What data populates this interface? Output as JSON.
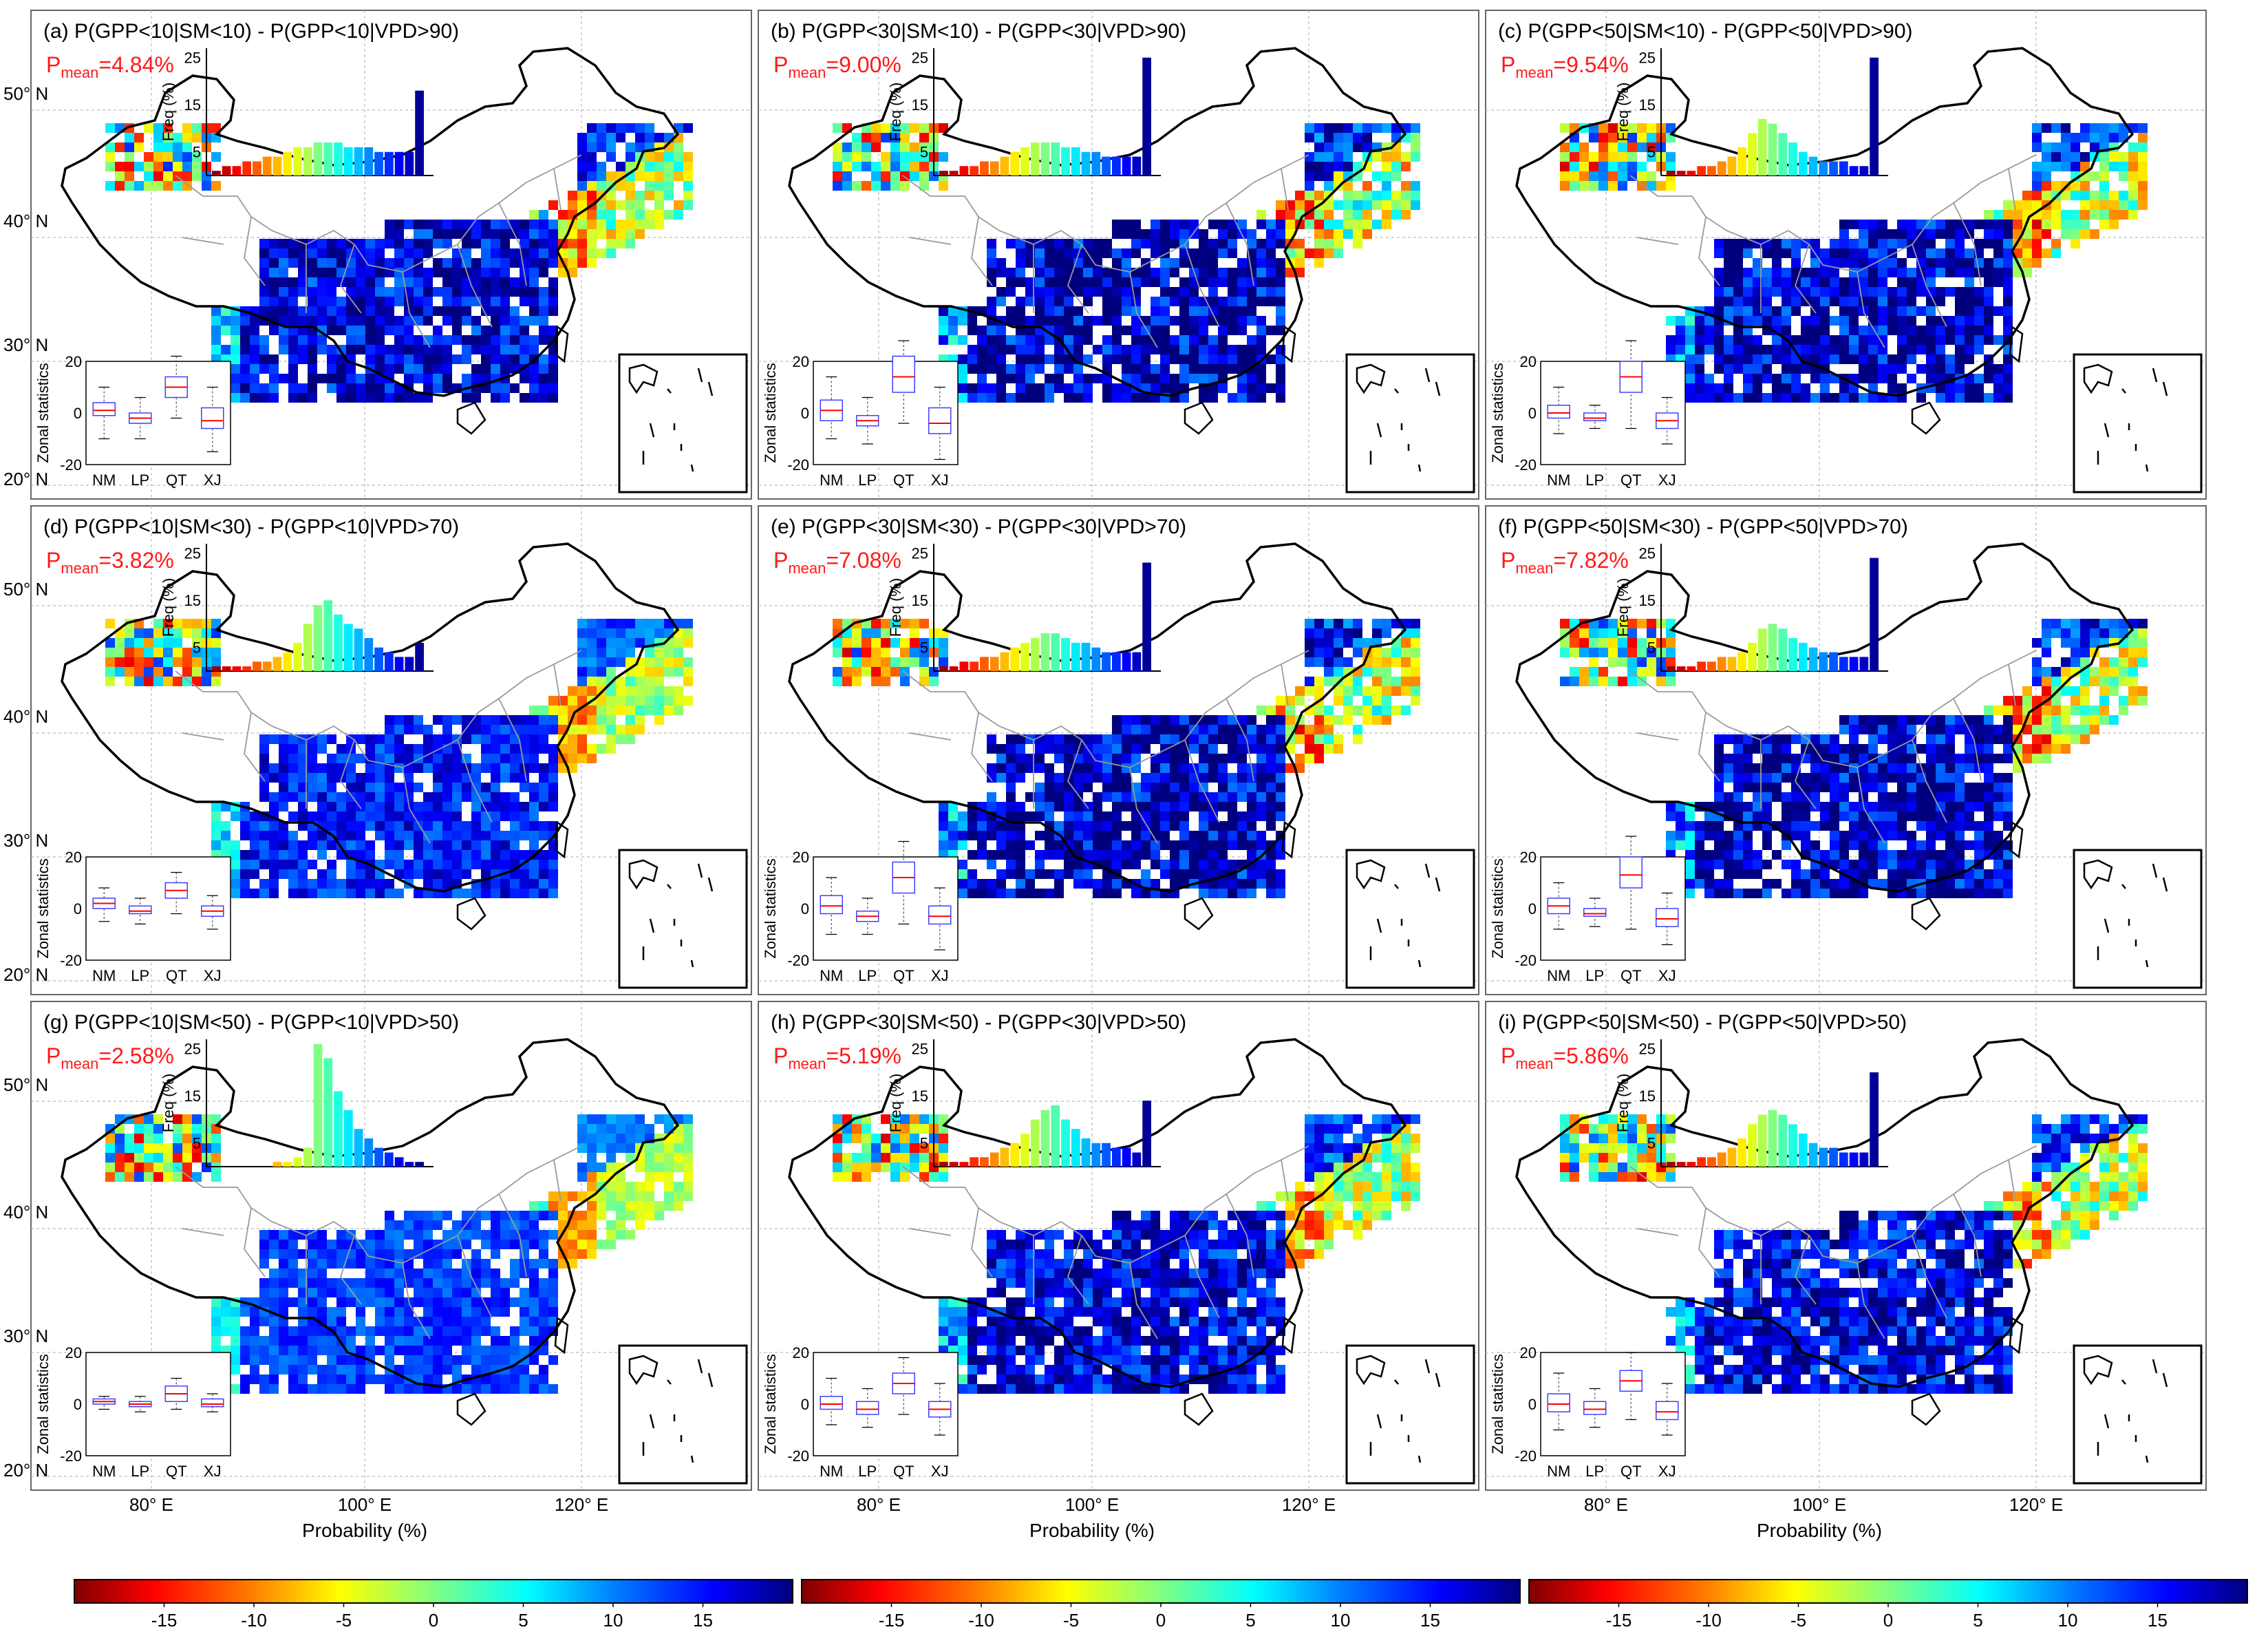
{
  "panels": [
    {
      "id": "a",
      "title": "(a) P(GPP<10|SM<10) - P(GPP<10|VPD>90)",
      "pmean_label": "P",
      "pmean_sub": "mean",
      "pmean_value": "=4.84%",
      "hist": [
        1,
        2,
        2,
        3,
        3,
        4,
        4,
        5,
        6,
        6,
        7,
        7,
        7,
        6,
        6,
        6,
        5,
        5,
        5,
        5,
        18
      ],
      "box": [
        {
          "q1": -1,
          "med": 1,
          "q3": 4,
          "lo": -10,
          "hi": 10
        },
        {
          "q1": -4,
          "med": -2,
          "q3": 0,
          "lo": -10,
          "hi": 6
        },
        {
          "q1": 6,
          "med": 10,
          "q3": 14,
          "lo": -2,
          "hi": 22
        },
        {
          "q1": -6,
          "med": -3,
          "q3": 2,
          "lo": -15,
          "hi": 10
        }
      ],
      "map_intensity": 1.0
    },
    {
      "id": "b",
      "title": "(b) P(GPP<30|SM<10) - P(GPP<30|VPD>90)",
      "pmean_label": "P",
      "pmean_sub": "mean",
      "pmean_value": "=9.00%",
      "hist": [
        1,
        1,
        2,
        2,
        3,
        3,
        4,
        5,
        6,
        7,
        7,
        7,
        6,
        6,
        5,
        5,
        4,
        4,
        4,
        4,
        25
      ],
      "box": [
        {
          "q1": -3,
          "med": 1,
          "q3": 5,
          "lo": -10,
          "hi": 14
        },
        {
          "q1": -5,
          "med": -3,
          "q3": -1,
          "lo": -12,
          "hi": 6
        },
        {
          "q1": 8,
          "med": 14,
          "q3": 22,
          "lo": -4,
          "hi": 28
        },
        {
          "q1": -8,
          "med": -4,
          "q3": 2,
          "lo": -18,
          "hi": 10
        }
      ],
      "map_intensity": 1.4
    },
    {
      "id": "c",
      "title": "(c) P(GPP<50|SM<10) - P(GPP<50|VPD>90)",
      "pmean_label": "P",
      "pmean_sub": "mean",
      "pmean_value": "=9.54%",
      "hist": [
        1,
        1,
        1,
        2,
        2,
        3,
        4,
        6,
        9,
        12,
        11,
        9,
        7,
        5,
        4,
        3,
        3,
        3,
        2,
        2,
        25
      ],
      "box": [
        {
          "q1": -2,
          "med": 0,
          "q3": 3,
          "lo": -8,
          "hi": 10
        },
        {
          "q1": -3,
          "med": -2,
          "q3": 0,
          "lo": -6,
          "hi": 3
        },
        {
          "q1": 8,
          "med": 14,
          "q3": 20,
          "lo": -6,
          "hi": 28
        },
        {
          "q1": -6,
          "med": -3,
          "q3": 0,
          "lo": -12,
          "hi": 6
        }
      ],
      "map_intensity": 1.2
    },
    {
      "id": "d",
      "title": "(d) P(GPP<10|SM<30) - P(GPP<10|VPD>70)",
      "pmean_label": "P",
      "pmean_sub": "mean",
      "pmean_value": "=3.82%",
      "hist": [
        1,
        1,
        1,
        1,
        2,
        2,
        3,
        4,
        6,
        10,
        14,
        15,
        12,
        10,
        9,
        7,
        5,
        4,
        3,
        3,
        6
      ],
      "box": [
        {
          "q1": 0,
          "med": 2,
          "q3": 4,
          "lo": -5,
          "hi": 8
        },
        {
          "q1": -2,
          "med": -1,
          "q3": 1,
          "lo": -6,
          "hi": 4
        },
        {
          "q1": 4,
          "med": 7,
          "q3": 10,
          "lo": -2,
          "hi": 14
        },
        {
          "q1": -3,
          "med": -1,
          "q3": 1,
          "lo": -8,
          "hi": 5
        }
      ],
      "map_intensity": 0.7
    },
    {
      "id": "e",
      "title": "(e) P(GPP<30|SM<30) - P(GPP<30|VPD>70)",
      "pmean_label": "P",
      "pmean_sub": "mean",
      "pmean_value": "=7.08%",
      "hist": [
        1,
        1,
        2,
        2,
        3,
        3,
        4,
        5,
        6,
        7,
        8,
        8,
        7,
        6,
        6,
        5,
        4,
        4,
        4,
        4,
        23
      ],
      "box": [
        {
          "q1": -2,
          "med": 1,
          "q3": 5,
          "lo": -10,
          "hi": 12
        },
        {
          "q1": -5,
          "med": -3,
          "q3": -1,
          "lo": -10,
          "hi": 4
        },
        {
          "q1": 6,
          "med": 12,
          "q3": 18,
          "lo": -6,
          "hi": 26
        },
        {
          "q1": -6,
          "med": -3,
          "q3": 1,
          "lo": -16,
          "hi": 8
        }
      ],
      "map_intensity": 1.25
    },
    {
      "id": "f",
      "title": "(f) P(GPP<50|SM<30) - P(GPP<50|VPD>70)",
      "pmean_label": "P",
      "pmean_sub": "mean",
      "pmean_value": "=7.82%",
      "hist": [
        1,
        1,
        1,
        2,
        2,
        3,
        3,
        4,
        6,
        9,
        10,
        9,
        7,
        6,
        5,
        4,
        4,
        3,
        3,
        3,
        24
      ],
      "box": [
        {
          "q1": -2,
          "med": 1,
          "q3": 4,
          "lo": -8,
          "hi": 10
        },
        {
          "q1": -3,
          "med": -2,
          "q3": 0,
          "lo": -7,
          "hi": 4
        },
        {
          "q1": 8,
          "med": 13,
          "q3": 20,
          "lo": -8,
          "hi": 28
        },
        {
          "q1": -7,
          "med": -4,
          "q3": 0,
          "lo": -14,
          "hi": 6
        }
      ],
      "map_intensity": 1.15
    },
    {
      "id": "g",
      "title": "(g) P(GPP<10|SM<50) - P(GPP<10|VPD>50)",
      "pmean_label": "P",
      "pmean_sub": "mean",
      "pmean_value": "=2.58%",
      "hist": [
        0,
        0,
        0,
        0,
        0,
        0,
        1,
        1,
        2,
        4,
        26,
        23,
        16,
        12,
        8,
        6,
        4,
        3,
        2,
        1,
        1
      ],
      "box": [
        {
          "q1": 0,
          "med": 1,
          "q3": 2,
          "lo": -2,
          "hi": 3
        },
        {
          "q1": -1,
          "med": 0,
          "q3": 1,
          "lo": -3,
          "hi": 3
        },
        {
          "q1": 1,
          "med": 4,
          "q3": 7,
          "lo": -2,
          "hi": 10
        },
        {
          "q1": -1,
          "med": 0,
          "q3": 2,
          "lo": -3,
          "hi": 4
        }
      ],
      "map_intensity": 0.45
    },
    {
      "id": "h",
      "title": "(h) P(GPP<30|SM<50) - P(GPP<30|VPD>50)",
      "pmean_label": "P",
      "pmean_sub": "mean",
      "pmean_value": "=5.19%",
      "hist": [
        1,
        1,
        1,
        2,
        2,
        3,
        4,
        5,
        7,
        10,
        12,
        13,
        10,
        8,
        6,
        5,
        5,
        4,
        4,
        3,
        14
      ],
      "box": [
        {
          "q1": -2,
          "med": 0,
          "q3": 3,
          "lo": -8,
          "hi": 10
        },
        {
          "q1": -4,
          "med": -2,
          "q3": 1,
          "lo": -9,
          "hi": 6
        },
        {
          "q1": 4,
          "med": 8,
          "q3": 12,
          "lo": -4,
          "hi": 18
        },
        {
          "q1": -5,
          "med": -2,
          "q3": 1,
          "lo": -12,
          "hi": 8
        }
      ],
      "map_intensity": 1.0
    },
    {
      "id": "i",
      "title": "(i) P(GPP<50|SM<50) - P(GPP<50|VPD>50)",
      "pmean_label": "P",
      "pmean_sub": "mean",
      "pmean_value": "=5.86%",
      "hist": [
        1,
        1,
        1,
        2,
        2,
        3,
        4,
        6,
        9,
        11,
        12,
        11,
        9,
        7,
        5,
        4,
        4,
        3,
        3,
        3,
        20
      ],
      "box": [
        {
          "q1": -3,
          "med": 0,
          "q3": 4,
          "lo": -10,
          "hi": 12
        },
        {
          "q1": -4,
          "med": -2,
          "q3": 1,
          "lo": -9,
          "hi": 6
        },
        {
          "q1": 5,
          "med": 9,
          "q3": 13,
          "lo": -6,
          "hi": 20
        },
        {
          "q1": -6,
          "med": -3,
          "q3": 1,
          "lo": -12,
          "hi": 8
        }
      ],
      "map_intensity": 1.05
    }
  ],
  "lat_ticks": [
    "50° N",
    "40° N",
    "30° N",
    "20° N"
  ],
  "lon_ticks": [
    "80° E",
    "100° E",
    "120° E"
  ],
  "x_axis_label": "Probability (%)",
  "hist_ylabel": "Freq (%)",
  "hist_yticks": [
    "25",
    "15",
    "5"
  ],
  "box_ylabel": "Zonal statistics",
  "box_yticks": [
    "20",
    "0",
    "-20"
  ],
  "box_categories": [
    "NM",
    "LP",
    "QT",
    "XJ"
  ],
  "colorbar": {
    "ticks": [
      "-15",
      "-10",
      "-5",
      "0",
      "5",
      "10",
      "15"
    ],
    "tick_values": [
      -15,
      -10,
      -5,
      0,
      5,
      10,
      15
    ],
    "range": [
      -20,
      20
    ],
    "colors": [
      "#7f0000",
      "#ff0000",
      "#ff8000",
      "#ffff00",
      "#80ff80",
      "#00ffff",
      "#0080ff",
      "#0000ff",
      "#00007f"
    ]
  }
}
